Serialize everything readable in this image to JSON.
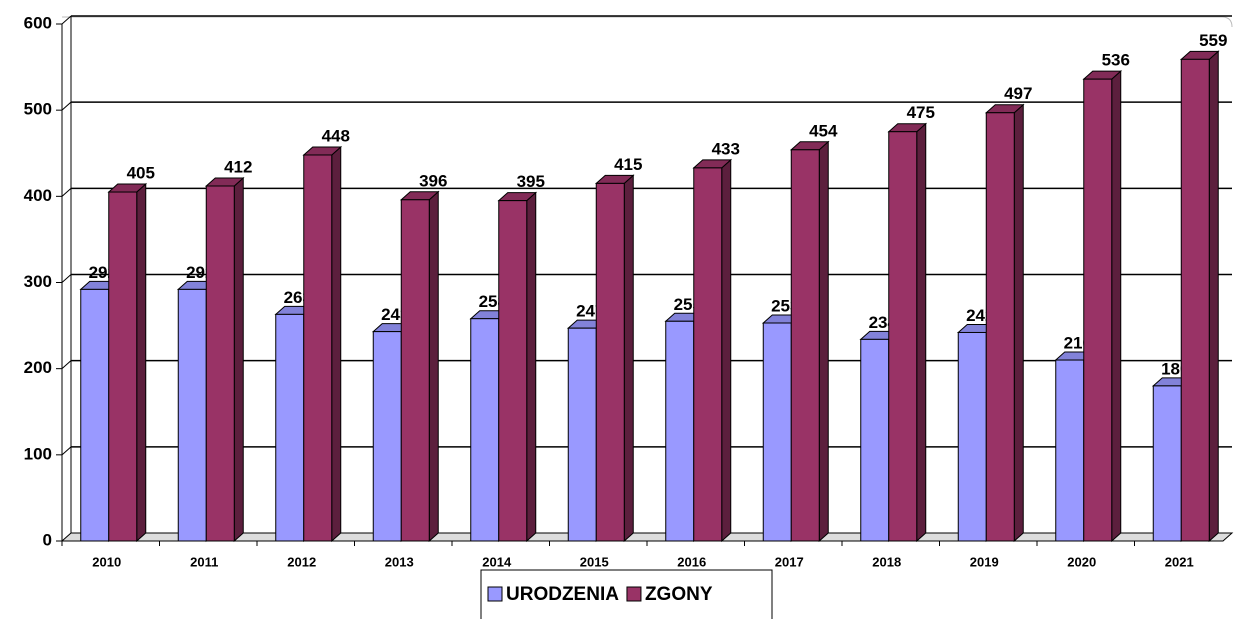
{
  "chart_data": {
    "type": "bar3d",
    "categories": [
      "2010",
      "2011",
      "2012",
      "2013",
      "2014",
      "2015",
      "2016",
      "2017",
      "2018",
      "2019",
      "2020",
      "2021"
    ],
    "series": [
      {
        "name": "URODZENIA",
        "color": "#9999ff",
        "values": [
          292,
          292,
          263,
          243,
          258,
          247,
          255,
          253,
          234,
          242,
          210,
          180
        ]
      },
      {
        "name": "ZGONY",
        "color": "#993366",
        "values": [
          405,
          412,
          448,
          396,
          395,
          415,
          433,
          454,
          475,
          497,
          536,
          559
        ]
      }
    ],
    "ylim": [
      0,
      600
    ],
    "yticks": [
      0,
      100,
      200,
      300,
      400,
      500,
      600
    ],
    "grid": true,
    "legend": "bottom"
  }
}
